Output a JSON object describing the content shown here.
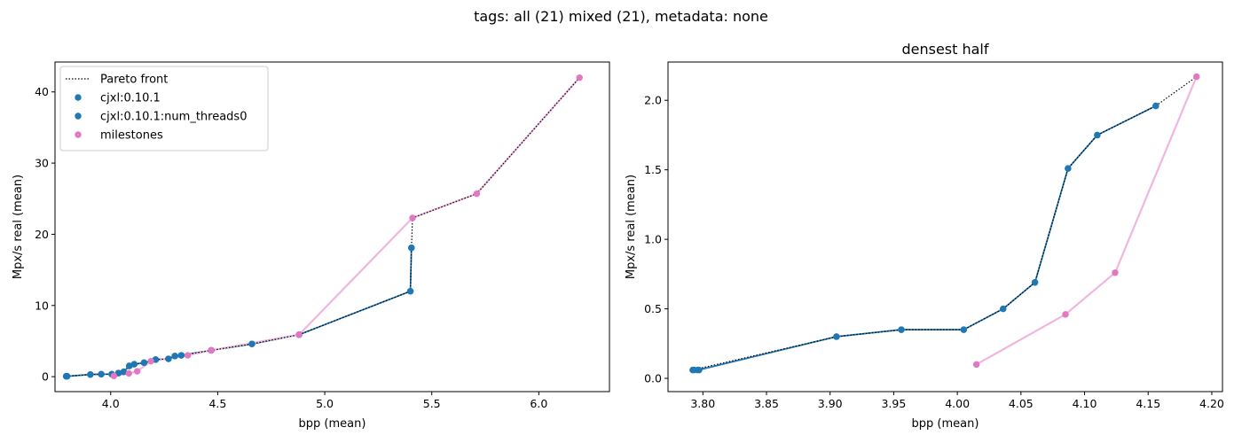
{
  "figure": {
    "suptitle": "tags: all (21) mixed (21), metadata: none"
  },
  "colors": {
    "cjxl": "#1f77b4",
    "milestones": "#e377c2",
    "milestones_line": "#f0b6de",
    "pareto": "#000000"
  },
  "chart_data": [
    {
      "type": "scatter",
      "title": "",
      "xlabel": "bpp (mean)",
      "ylabel": "Mpx/s real (mean)",
      "xlim": [
        3.74,
        6.33
      ],
      "ylim": [
        -2.1,
        44.2
      ],
      "xticks": [
        4.0,
        4.5,
        5.0,
        5.5,
        6.0
      ],
      "xtick_labels": [
        "4.0",
        "4.5",
        "5.0",
        "5.5",
        "6.0"
      ],
      "yticks": [
        0,
        10,
        20,
        30,
        40
      ],
      "ytick_labels": [
        "0",
        "10",
        "20",
        "30",
        "40"
      ],
      "grid": false,
      "legend": {
        "placement": "upper-left",
        "entries": [
          {
            "label": "Pareto front",
            "kind": "dotted-line",
            "color_key": "pareto"
          },
          {
            "label": "cjxl:0.10.1",
            "kind": "marker",
            "color_key": "cjxl"
          },
          {
            "label": "cjxl:0.10.1:num_threads0",
            "kind": "marker",
            "color_key": "cjxl"
          },
          {
            "label": "milestones",
            "kind": "marker",
            "color_key": "milestones"
          }
        ]
      },
      "series": [
        {
          "name": "cjxl:0.10.1",
          "color_key": "cjxl",
          "connected": true,
          "points": [
            [
              3.792,
              0.06
            ],
            [
              3.796,
              0.06
            ],
            [
              3.905,
              0.3
            ],
            [
              3.956,
              0.35
            ],
            [
              4.005,
              0.35
            ],
            [
              4.036,
              0.5
            ],
            [
              4.061,
              0.69
            ],
            [
              4.087,
              1.51
            ],
            [
              4.11,
              1.75
            ],
            [
              4.156,
              1.96
            ],
            [
              4.21,
              2.4
            ],
            [
              4.27,
              2.5
            ],
            [
              4.3,
              2.9
            ],
            [
              4.33,
              3.0
            ],
            [
              4.47,
              3.7
            ],
            [
              4.66,
              4.6
            ],
            [
              4.88,
              5.9
            ],
            [
              5.4,
              12.0
            ],
            [
              5.405,
              18.1
            ]
          ]
        },
        {
          "name": "cjxl:0.10.1:num_threads0",
          "color_key": "cjxl",
          "connected": true,
          "points": [
            [
              3.793,
              0.06
            ],
            [
              3.797,
              0.06
            ],
            [
              3.905,
              0.3
            ],
            [
              3.956,
              0.35
            ],
            [
              4.005,
              0.35
            ],
            [
              4.036,
              0.5
            ],
            [
              4.061,
              0.69
            ],
            [
              4.087,
              1.51
            ],
            [
              4.11,
              1.75
            ],
            [
              4.156,
              1.96
            ],
            [
              4.21,
              2.4
            ],
            [
              4.27,
              2.5
            ],
            [
              4.3,
              2.9
            ],
            [
              4.33,
              3.0
            ],
            [
              4.47,
              3.7
            ],
            [
              4.66,
              4.6
            ],
            [
              4.88,
              5.9
            ],
            [
              5.4,
              12.0
            ],
            [
              5.405,
              18.1
            ]
          ]
        },
        {
          "name": "milestones",
          "color_key": "milestones",
          "connected": true,
          "points": [
            [
              4.015,
              0.1
            ],
            [
              4.085,
              0.46
            ],
            [
              4.124,
              0.76
            ],
            [
              4.188,
              2.17
            ],
            [
              4.36,
              3.0
            ],
            [
              4.47,
              3.7
            ],
            [
              4.88,
              5.9
            ],
            [
              5.41,
              22.3
            ],
            [
              5.71,
              25.7
            ],
            [
              6.19,
              42.0
            ]
          ]
        }
      ],
      "pareto_front": [
        [
          3.792,
          0.06
        ],
        [
          3.905,
          0.3
        ],
        [
          3.956,
          0.35
        ],
        [
          4.005,
          0.35
        ],
        [
          4.036,
          0.5
        ],
        [
          4.061,
          0.69
        ],
        [
          4.087,
          1.51
        ],
        [
          4.11,
          1.75
        ],
        [
          4.156,
          1.96
        ],
        [
          4.188,
          2.17
        ],
        [
          4.21,
          2.4
        ],
        [
          4.27,
          2.5
        ],
        [
          4.3,
          2.9
        ],
        [
          4.33,
          3.0
        ],
        [
          4.47,
          3.7
        ],
        [
          4.66,
          4.6
        ],
        [
          4.88,
          5.9
        ],
        [
          5.4,
          12.0
        ],
        [
          5.405,
          18.1
        ],
        [
          5.41,
          22.3
        ],
        [
          5.71,
          25.7
        ],
        [
          6.19,
          42.0
        ]
      ]
    },
    {
      "type": "scatter",
      "title": "densest half",
      "xlabel": "bpp (mean)",
      "ylabel": "Mpx/s real (mean)",
      "xlim": [
        3.7726,
        4.2084
      ],
      "ylim": [
        -0.0955,
        2.2755
      ],
      "xticks": [
        3.8,
        3.85,
        3.9,
        3.95,
        4.0,
        4.05,
        4.1,
        4.15,
        4.2
      ],
      "xtick_labels": [
        "3.80",
        "3.85",
        "3.90",
        "3.95",
        "4.00",
        "4.05",
        "4.10",
        "4.15",
        "4.20"
      ],
      "yticks": [
        0.0,
        0.5,
        1.0,
        1.5,
        2.0
      ],
      "ytick_labels": [
        "0.0",
        "0.5",
        "1.0",
        "1.5",
        "2.0"
      ],
      "grid": false,
      "series": [
        {
          "name": "cjxl:0.10.1",
          "color_key": "cjxl",
          "connected": true,
          "points": [
            [
              3.792,
              0.06
            ],
            [
              3.796,
              0.06
            ],
            [
              3.905,
              0.3
            ],
            [
              3.956,
              0.35
            ],
            [
              4.005,
              0.35
            ],
            [
              4.036,
              0.5
            ],
            [
              4.061,
              0.69
            ],
            [
              4.087,
              1.51
            ],
            [
              4.11,
              1.75
            ],
            [
              4.156,
              1.96
            ]
          ]
        },
        {
          "name": "cjxl:0.10.1:num_threads0",
          "color_key": "cjxl",
          "connected": true,
          "points": [
            [
              3.793,
              0.06
            ],
            [
              3.797,
              0.06
            ],
            [
              3.905,
              0.3
            ],
            [
              3.956,
              0.35
            ],
            [
              4.005,
              0.35
            ],
            [
              4.036,
              0.5
            ],
            [
              4.061,
              0.69
            ],
            [
              4.087,
              1.51
            ],
            [
              4.11,
              1.75
            ],
            [
              4.156,
              1.96
            ]
          ]
        },
        {
          "name": "milestones",
          "color_key": "milestones",
          "connected": true,
          "points": [
            [
              4.015,
              0.1
            ],
            [
              4.085,
              0.46
            ],
            [
              4.124,
              0.76
            ],
            [
              4.188,
              2.17
            ]
          ]
        }
      ],
      "pareto_front": [
        [
          3.792,
          0.06
        ],
        [
          3.905,
          0.3
        ],
        [
          3.956,
          0.35
        ],
        [
          4.005,
          0.35
        ],
        [
          4.036,
          0.5
        ],
        [
          4.061,
          0.69
        ],
        [
          4.087,
          1.51
        ],
        [
          4.11,
          1.75
        ],
        [
          4.156,
          1.96
        ],
        [
          4.188,
          2.17
        ]
      ]
    }
  ]
}
